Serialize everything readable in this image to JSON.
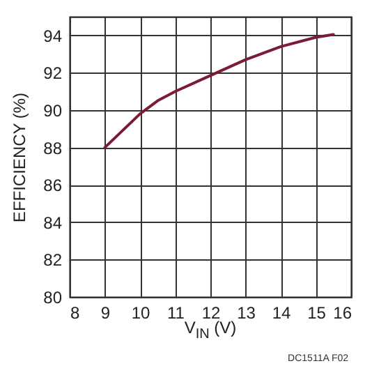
{
  "chart_data": {
    "type": "line",
    "xlabel": "V$_{IN}$ (V)",
    "ylabel": "EFFICIENCY (%)",
    "annotations": [
      "DC1511A F02"
    ],
    "x": [
      9,
      10,
      10.5,
      11,
      12,
      13,
      14,
      15,
      15.5
    ],
    "series": [
      {
        "color": "#7b1c34",
        "values": [
          88,
          89.8,
          90.5,
          91,
          91.85,
          92.7,
          93.4,
          93.9,
          94.05
        ]
      }
    ],
    "xlim": [
      8,
      16
    ],
    "xticks": [
      8,
      9,
      10,
      11,
      12,
      13,
      14,
      15,
      16
    ],
    "ylim": [
      80,
      95
    ],
    "yticks": [
      80,
      82,
      84,
      86,
      88,
      90,
      92,
      94
    ],
    "grid": true
  }
}
